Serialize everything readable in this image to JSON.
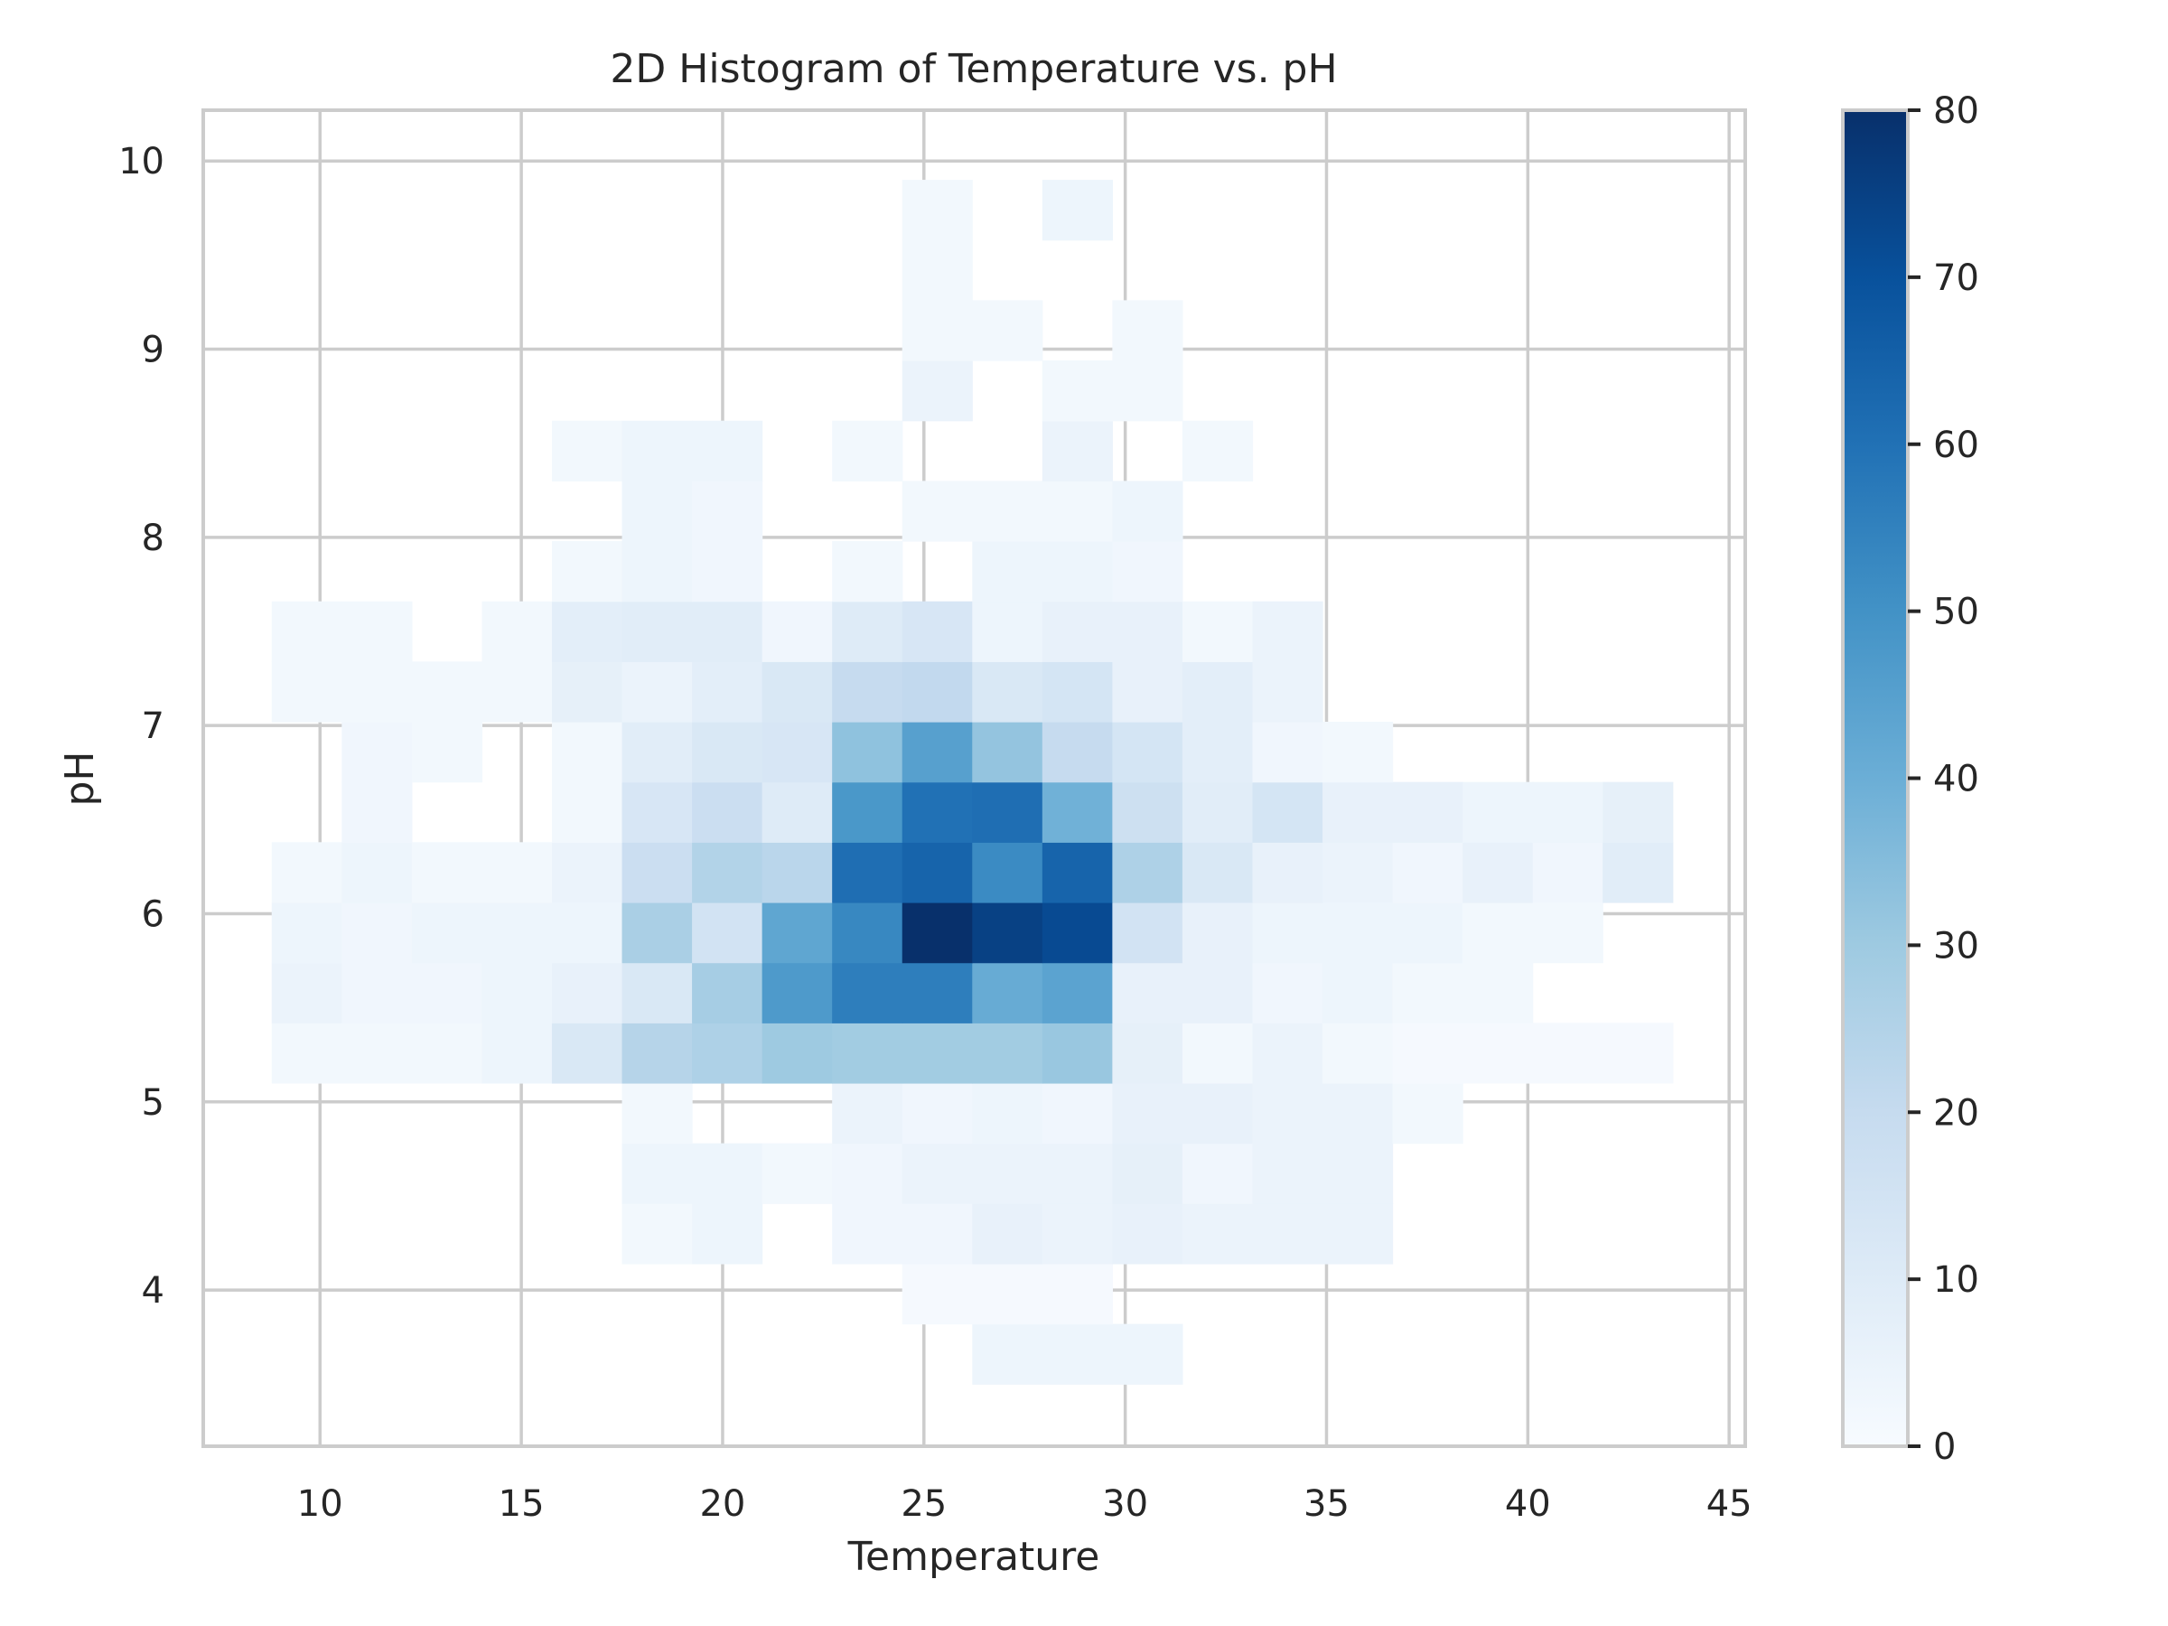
{
  "chart_data": {
    "type": "heatmap",
    "title": "2D Histogram of Temperature vs. pH",
    "xlabel": "Temperature",
    "ylabel": "pH",
    "xlim": [
      7.1,
      45.4
    ],
    "ylim": [
      3.17,
      10.27
    ],
    "xticks": [
      10,
      15,
      20,
      25,
      30,
      35,
      40,
      45
    ],
    "yticks": [
      4,
      5,
      6,
      7,
      8,
      9,
      10
    ],
    "grid": true,
    "colormap": "Blues",
    "colorbar": {
      "min": 0,
      "max": 80,
      "ticks": [
        0,
        10,
        20,
        30,
        40,
        50,
        60,
        70,
        80
      ]
    },
    "x_bin_edges": [
      8.8,
      10.54,
      12.28,
      14.02,
      15.76,
      17.5,
      19.24,
      20.98,
      22.72,
      24.46,
      26.2,
      27.94,
      29.68,
      31.42,
      33.16,
      34.9,
      36.64,
      38.38,
      40.12,
      41.86,
      43.6
    ],
    "y_bin_edges": [
      3.5,
      3.82,
      4.14,
      4.46,
      4.78,
      5.1,
      5.42,
      5.74,
      6.06,
      6.38,
      6.7,
      7.02,
      7.34,
      7.66,
      7.98,
      8.3,
      8.62,
      8.94,
      9.26,
      9.58,
      9.9
    ],
    "counts": [
      [
        0,
        0,
        0,
        0,
        0,
        0,
        0,
        0,
        0,
        0,
        4,
        4,
        4,
        0,
        0,
        0,
        0,
        0,
        0,
        0
      ],
      [
        0,
        0,
        0,
        0,
        0,
        0,
        0,
        0,
        0,
        1,
        1,
        1,
        0,
        0,
        0,
        0,
        0,
        0,
        0,
        0
      ],
      [
        0,
        0,
        0,
        0,
        0,
        2,
        4,
        0,
        3,
        3,
        6,
        5,
        6,
        5,
        5,
        5,
        0,
        0,
        0,
        0
      ],
      [
        0,
        0,
        0,
        0,
        0,
        4,
        4,
        2,
        3,
        5,
        5,
        5,
        7,
        3,
        5,
        5,
        0,
        0,
        0,
        0
      ],
      [
        0,
        0,
        0,
        0,
        0,
        2,
        0,
        0,
        5,
        3,
        4,
        3,
        6,
        6,
        5,
        5,
        2,
        0,
        0,
        0
      ],
      [
        2,
        2,
        2,
        4,
        12,
        24,
        26,
        30,
        29,
        29,
        29,
        31,
        7,
        2,
        5,
        2,
        1,
        1,
        1,
        1
      ],
      [
        5,
        3,
        3,
        4,
        6,
        12,
        28,
        47,
        56,
        56,
        41,
        44,
        6,
        6,
        3,
        4,
        2,
        2,
        0,
        0
      ],
      [
        4,
        3,
        4,
        4,
        4,
        27,
        15,
        43,
        53,
        80,
        75,
        72,
        15,
        6,
        4,
        4,
        4,
        2,
        2,
        0
      ],
      [
        2,
        4,
        2,
        2,
        5,
        18,
        25,
        23,
        61,
        64,
        52,
        64,
        26,
        12,
        6,
        5,
        3,
        6,
        3,
        9
      ],
      [
        0,
        3,
        0,
        0,
        2,
        13,
        18,
        10,
        48,
        60,
        61,
        39,
        17,
        9,
        14,
        6,
        6,
        4,
        4,
        7
      ],
      [
        0,
        3,
        2,
        0,
        2,
        9,
        12,
        13,
        33,
        45,
        32,
        20,
        14,
        8,
        3,
        2,
        0,
        0,
        0,
        0
      ],
      [
        2,
        2,
        2,
        2,
        7,
        5,
        8,
        12,
        20,
        21,
        12,
        14,
        6,
        8,
        5,
        0,
        0,
        0,
        0,
        0
      ],
      [
        2,
        2,
        0,
        2,
        8,
        9,
        9,
        3,
        10,
        13,
        4,
        6,
        6,
        2,
        5,
        0,
        0,
        0,
        0,
        0
      ],
      [
        0,
        0,
        0,
        0,
        2,
        4,
        3,
        0,
        2,
        0,
        4,
        4,
        3,
        0,
        0,
        0,
        0,
        0,
        0,
        0
      ],
      [
        0,
        0,
        0,
        0,
        0,
        4,
        3,
        0,
        0,
        2,
        2,
        2,
        4,
        0,
        0,
        0,
        0,
        0,
        0,
        0
      ],
      [
        0,
        0,
        0,
        0,
        2,
        4,
        4,
        0,
        2,
        0,
        0,
        5,
        0,
        2,
        0,
        0,
        0,
        0,
        0,
        0
      ],
      [
        0,
        0,
        0,
        0,
        0,
        0,
        0,
        0,
        0,
        5,
        0,
        2,
        2,
        0,
        0,
        0,
        0,
        0,
        0,
        0
      ],
      [
        0,
        0,
        0,
        0,
        0,
        0,
        0,
        0,
        0,
        2,
        2,
        0,
        2,
        0,
        0,
        0,
        0,
        0,
        0,
        0
      ],
      [
        0,
        0,
        0,
        0,
        0,
        0,
        0,
        0,
        0,
        2,
        0,
        0,
        0,
        0,
        0,
        0,
        0,
        0,
        0,
        0
      ],
      [
        0,
        0,
        0,
        0,
        0,
        0,
        0,
        0,
        0,
        2,
        0,
        4,
        0,
        0,
        0,
        0,
        0,
        0,
        0,
        0
      ]
    ]
  }
}
